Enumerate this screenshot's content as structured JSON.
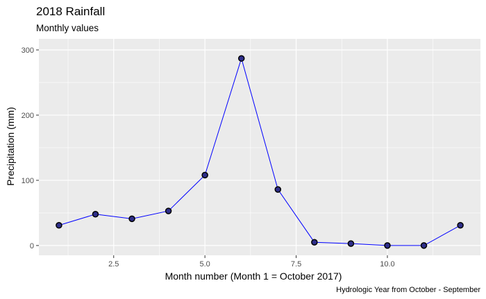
{
  "chart_data": {
    "type": "line",
    "title": "2018 Rainfall",
    "subtitle": "Monthly values",
    "xlabel": "Month number (Month 1 = October 2017)",
    "ylabel": "Precipitation (mm)",
    "caption": "Hydrologic Year from October - September",
    "x": [
      1,
      2,
      3,
      4,
      5,
      6,
      7,
      8,
      9,
      10,
      11,
      12
    ],
    "values": [
      31,
      48,
      41,
      53,
      108,
      287,
      86,
      5,
      3,
      0,
      0,
      31
    ],
    "xlim": [
      0.45,
      12.55
    ],
    "ylim": [
      -15,
      317
    ],
    "x_ticks": [
      2.5,
      5.0,
      7.5,
      10.0
    ],
    "x_tick_labels": [
      "2.5",
      "5.0",
      "7.5",
      "10.0"
    ],
    "y_ticks": [
      0,
      100,
      200,
      300
    ],
    "y_tick_labels": [
      "0",
      "100",
      "200",
      "300"
    ],
    "grid": true,
    "legend": "none",
    "colors": {
      "panel_background": "#EBEBEB",
      "grid_major": "#FFFFFF",
      "line": "#0000FF",
      "point_fill": "#2E2E8A",
      "point_stroke": "#000000"
    }
  }
}
